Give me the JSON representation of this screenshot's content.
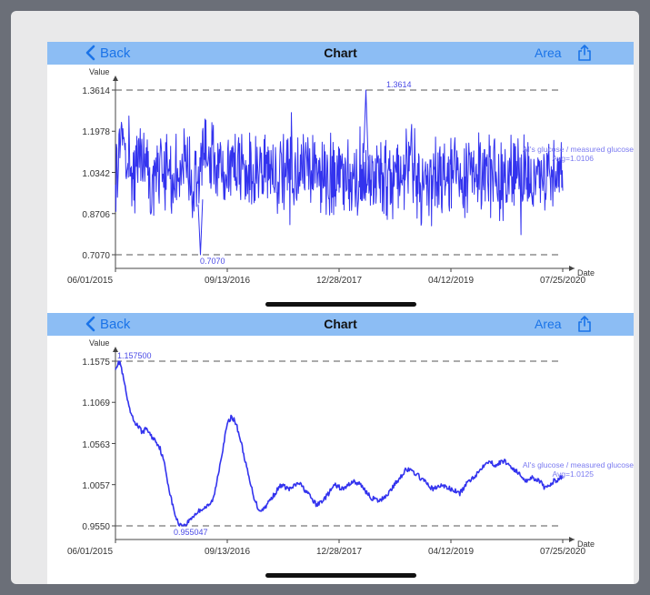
{
  "panels": [
    {
      "nav": {
        "back_label": "Back",
        "title": "Chart",
        "area_label": "Area",
        "share_icon": "share-icon"
      },
      "chart_data": {
        "type": "line",
        "ylabel": "Value",
        "xlabel": "Date",
        "y_ticks": [
          "1.3614",
          "1.1978",
          "1.0342",
          "0.8706",
          "0.7070"
        ],
        "y_tick_values": [
          1.3614,
          1.1978,
          1.0342,
          0.8706,
          0.707
        ],
        "ylim": [
          0.707,
          1.3614
        ],
        "x_ticks": [
          "06/01/2015",
          "09/13/2016",
          "12/28/2017",
          "04/12/2019",
          "07/25/2020"
        ],
        "max_label": "1.3614",
        "min_label": "0.7070",
        "series": [
          {
            "name": "AI's glucose / measured glucose",
            "avg_label": "Avg=1.0106",
            "color": "#3333ee",
            "style": "noisy"
          }
        ],
        "points": [
          [
            0.0,
            1.05
          ],
          [
            0.02,
            1.2
          ],
          [
            0.04,
            1.0
          ],
          [
            0.06,
            1.14
          ],
          [
            0.08,
            0.96
          ],
          [
            0.1,
            1.1
          ],
          [
            0.12,
            0.98
          ],
          [
            0.15,
            1.08
          ],
          [
            0.18,
            1.0
          ],
          [
            0.2,
            1.12
          ],
          [
            0.23,
            1.03
          ],
          [
            0.26,
            1.09
          ],
          [
            0.3,
            1.02
          ],
          [
            0.34,
            1.06
          ],
          [
            0.38,
            0.99
          ],
          [
            0.42,
            1.05
          ],
          [
            0.46,
            1.01
          ],
          [
            0.5,
            1.04
          ],
          [
            0.54,
            0.98
          ],
          [
            0.58,
            1.04
          ],
          [
            0.62,
            1.0
          ],
          [
            0.66,
            1.05
          ],
          [
            0.7,
            0.99
          ],
          [
            0.74,
            1.04
          ],
          [
            0.78,
            1.01
          ],
          [
            0.82,
            1.04
          ],
          [
            0.86,
            1.0
          ],
          [
            0.9,
            1.03
          ],
          [
            0.94,
            1.0
          ],
          [
            0.97,
            1.03
          ],
          [
            1.0,
            1.01
          ]
        ]
      }
    },
    {
      "nav": {
        "back_label": "Back",
        "title": "Chart",
        "area_label": "Area",
        "share_icon": "share-icon"
      },
      "chart_data": {
        "type": "line",
        "ylabel": "Value",
        "xlabel": "Date",
        "y_ticks": [
          "1.1575",
          "1.1069",
          "1.0563",
          "1.0057",
          "0.9550"
        ],
        "y_tick_values": [
          1.1575,
          1.1069,
          1.0563,
          1.0057,
          0.955
        ],
        "ylim": [
          0.955,
          1.1575
        ],
        "x_ticks": [
          "06/01/2015",
          "09/13/2016",
          "12/28/2017",
          "04/12/2019",
          "07/25/2020"
        ],
        "max_label": "1.157500",
        "min_label": "0.955047",
        "series": [
          {
            "name": "AI's glucose / measured glucose",
            "avg_label": "Avg=1.0125",
            "color": "#3333ee",
            "style": "smooth"
          }
        ],
        "points": [
          [
            0.0,
            1.15
          ],
          [
            0.01,
            1.157
          ],
          [
            0.02,
            1.13
          ],
          [
            0.03,
            1.1
          ],
          [
            0.04,
            1.085
          ],
          [
            0.05,
            1.078
          ],
          [
            0.06,
            1.07
          ],
          [
            0.07,
            1.075
          ],
          [
            0.08,
            1.065
          ],
          [
            0.09,
            1.06
          ],
          [
            0.1,
            1.05
          ],
          [
            0.11,
            1.03
          ],
          [
            0.12,
            1.0
          ],
          [
            0.13,
            0.975
          ],
          [
            0.14,
            0.958
          ],
          [
            0.155,
            0.955
          ],
          [
            0.17,
            0.965
          ],
          [
            0.19,
            0.975
          ],
          [
            0.21,
            0.98
          ],
          [
            0.22,
            0.99
          ],
          [
            0.23,
            1.02
          ],
          [
            0.24,
            1.05
          ],
          [
            0.25,
            1.08
          ],
          [
            0.26,
            1.09
          ],
          [
            0.27,
            1.08
          ],
          [
            0.28,
            1.06
          ],
          [
            0.29,
            1.035
          ],
          [
            0.3,
            1.01
          ],
          [
            0.31,
            0.99
          ],
          [
            0.32,
            0.975
          ],
          [
            0.33,
            0.975
          ],
          [
            0.35,
            0.99
          ],
          [
            0.37,
            1.005
          ],
          [
            0.39,
            1.0
          ],
          [
            0.41,
            1.008
          ],
          [
            0.43,
            0.995
          ],
          [
            0.45,
            0.98
          ],
          [
            0.47,
            0.99
          ],
          [
            0.49,
            1.005
          ],
          [
            0.51,
            1.0
          ],
          [
            0.53,
            1.01
          ],
          [
            0.55,
            1.005
          ],
          [
            0.57,
            0.99
          ],
          [
            0.59,
            0.985
          ],
          [
            0.61,
            0.995
          ],
          [
            0.63,
            1.01
          ],
          [
            0.65,
            1.025
          ],
          [
            0.67,
            1.02
          ],
          [
            0.69,
            1.01
          ],
          [
            0.71,
            1.0
          ],
          [
            0.73,
            1.005
          ],
          [
            0.75,
            1.0
          ],
          [
            0.77,
            0.995
          ],
          [
            0.79,
            1.01
          ],
          [
            0.81,
            1.02
          ],
          [
            0.83,
            1.035
          ],
          [
            0.85,
            1.03
          ],
          [
            0.87,
            1.035
          ],
          [
            0.88,
            1.03
          ],
          [
            0.9,
            1.02
          ],
          [
            0.92,
            1.01
          ],
          [
            0.93,
            1.015
          ],
          [
            0.95,
            1.01
          ],
          [
            0.96,
            1.0
          ],
          [
            0.98,
            1.01
          ],
          [
            1.0,
            1.015
          ]
        ]
      }
    }
  ]
}
